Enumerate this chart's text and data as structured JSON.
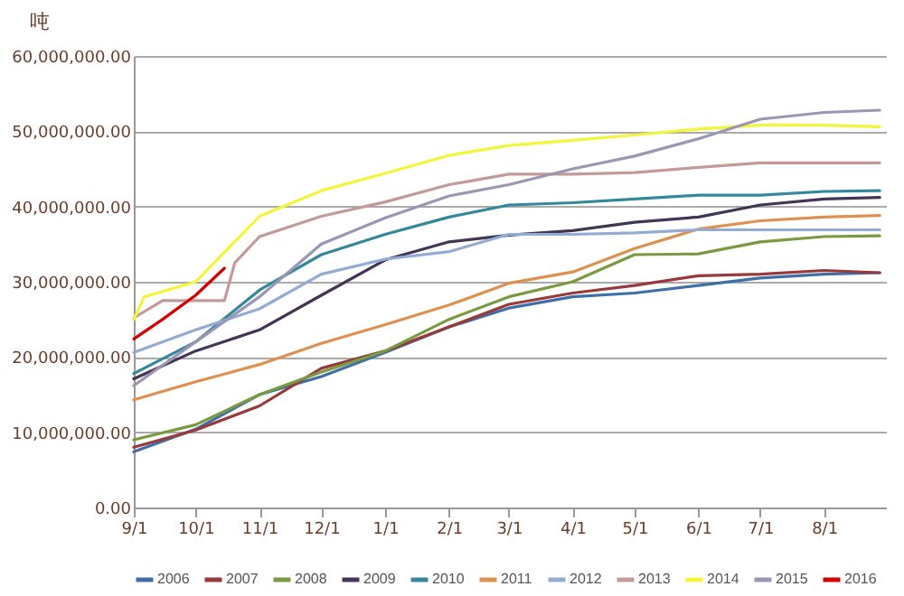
{
  "chart_data": {
    "type": "line",
    "ylabel": "吨",
    "xlim": [
      "2015-09-01",
      "2016-08-31"
    ],
    "xticks": [
      {
        "value": "2015-09-01",
        "label": "9/1"
      },
      {
        "value": "2015-10-01",
        "label": "10/1"
      },
      {
        "value": "2015-11-01",
        "label": "11/1"
      },
      {
        "value": "2015-12-01",
        "label": "12/1"
      },
      {
        "value": "2016-01-01",
        "label": "1/1"
      },
      {
        "value": "2016-02-01",
        "label": "2/1"
      },
      {
        "value": "2016-03-01",
        "label": "3/1"
      },
      {
        "value": "2016-04-01",
        "label": "4/1"
      },
      {
        "value": "2016-05-01",
        "label": "5/1"
      },
      {
        "value": "2016-06-01",
        "label": "6/1"
      },
      {
        "value": "2016-07-01",
        "label": "7/1"
      },
      {
        "value": "2016-08-01",
        "label": "8/1"
      }
    ],
    "ylim": [
      0,
      60000000
    ],
    "yticks": [
      {
        "value": 0,
        "label": "0.00"
      },
      {
        "value": 10000000,
        "label": "10,000,000.00"
      },
      {
        "value": 20000000,
        "label": "20,000,000.00"
      },
      {
        "value": 30000000,
        "label": "30,000,000.00"
      },
      {
        "value": 40000000,
        "label": "40,000,000.00"
      },
      {
        "value": 50000000,
        "label": "50,000,000.00"
      },
      {
        "value": 60000000,
        "label": "60,000,000.00"
      }
    ],
    "grid": "y",
    "legend": "bottom",
    "marker": "none",
    "line_style": "solid",
    "series": [
      {
        "name": "2006",
        "color": "#3f6fa8",
        "x": [
          "2015-09-01",
          "2015-10-01",
          "2015-11-01",
          "2015-12-01",
          "2016-01-01",
          "2016-02-01",
          "2016-03-01",
          "2016-04-01",
          "2016-05-01",
          "2016-06-01",
          "2016-07-01",
          "2016-08-01",
          "2016-08-28"
        ],
        "values": [
          7400000,
          10400000,
          15000000,
          17400000,
          20600000,
          24000000,
          26500000,
          28000000,
          28500000,
          29500000,
          30500000,
          31000000,
          31200000
        ]
      },
      {
        "name": "2007",
        "color": "#983a3a",
        "x": [
          "2015-09-01",
          "2015-10-01",
          "2015-11-01",
          "2015-12-01",
          "2016-01-01",
          "2016-02-01",
          "2016-03-01",
          "2016-04-01",
          "2016-05-01",
          "2016-06-01",
          "2016-07-01",
          "2016-08-01",
          "2016-08-28"
        ],
        "values": [
          8000000,
          10300000,
          13500000,
          18500000,
          20800000,
          24000000,
          27000000,
          28500000,
          29500000,
          30800000,
          31000000,
          31500000,
          31200000
        ]
      },
      {
        "name": "2008",
        "color": "#7a9a40",
        "x": [
          "2015-09-01",
          "2015-10-01",
          "2015-11-01",
          "2015-12-01",
          "2016-01-01",
          "2016-02-01",
          "2016-03-01",
          "2016-04-01",
          "2016-05-01",
          "2016-06-01",
          "2016-07-01",
          "2016-08-01",
          "2016-08-28"
        ],
        "values": [
          9000000,
          11000000,
          15000000,
          18000000,
          20800000,
          25000000,
          28000000,
          30000000,
          33600000,
          33700000,
          35300000,
          36000000,
          36100000
        ]
      },
      {
        "name": "2009",
        "color": "#443456",
        "x": [
          "2015-09-01",
          "2015-10-01",
          "2015-11-01",
          "2015-12-01",
          "2016-01-01",
          "2016-02-01",
          "2016-03-01",
          "2016-04-01",
          "2016-05-01",
          "2016-06-01",
          "2016-07-01",
          "2016-08-01",
          "2016-08-28"
        ],
        "values": [
          17100000,
          20800000,
          23600000,
          28200000,
          32900000,
          35300000,
          36200000,
          36800000,
          37900000,
          38600000,
          40200000,
          41000000,
          41200000
        ]
      },
      {
        "name": "2010",
        "color": "#34889e",
        "x": [
          "2015-09-01",
          "2015-10-01",
          "2015-11-01",
          "2015-12-01",
          "2016-01-01",
          "2016-02-01",
          "2016-03-01",
          "2016-04-01",
          "2016-05-01",
          "2016-06-01",
          "2016-07-01",
          "2016-08-01",
          "2016-08-28"
        ],
        "values": [
          17800000,
          22000000,
          28900000,
          33600000,
          36300000,
          38600000,
          40200000,
          40500000,
          41000000,
          41500000,
          41500000,
          42000000,
          42100000
        ]
      },
      {
        "name": "2011",
        "color": "#de9050",
        "x": [
          "2015-09-01",
          "2015-10-01",
          "2015-11-01",
          "2015-12-01",
          "2016-01-01",
          "2016-02-01",
          "2016-03-01",
          "2016-04-01",
          "2016-05-01",
          "2016-06-01",
          "2016-07-01",
          "2016-08-01",
          "2016-08-28"
        ],
        "values": [
          14300000,
          16700000,
          19000000,
          21800000,
          24300000,
          26900000,
          29800000,
          31300000,
          34400000,
          37000000,
          38100000,
          38600000,
          38800000
        ]
      },
      {
        "name": "2012",
        "color": "#93acd4",
        "x": [
          "2015-09-01",
          "2015-10-01",
          "2015-11-01",
          "2015-12-01",
          "2016-01-01",
          "2016-02-01",
          "2016-03-01",
          "2016-04-01",
          "2016-05-01",
          "2016-06-01",
          "2016-07-01",
          "2016-08-01",
          "2016-08-28"
        ],
        "values": [
          20600000,
          23600000,
          26400000,
          31000000,
          33000000,
          34000000,
          36300000,
          36300000,
          36500000,
          36900000,
          36900000,
          36900000,
          36900000
        ]
      },
      {
        "name": "2013",
        "color": "#c49a98",
        "x": [
          "2015-09-01",
          "2015-09-15",
          "2015-10-15",
          "2015-10-20",
          "2015-11-01",
          "2015-12-01",
          "2016-01-01",
          "2016-02-01",
          "2016-03-01",
          "2016-04-01",
          "2016-05-01",
          "2016-06-01",
          "2016-07-01",
          "2016-08-01",
          "2016-08-28"
        ],
        "values": [
          25200000,
          27500000,
          27500000,
          32500000,
          36000000,
          38700000,
          40600000,
          42900000,
          44300000,
          44300000,
          44500000,
          45200000,
          45800000,
          45800000,
          45800000
        ]
      },
      {
        "name": "2014",
        "color": "#f4f43a",
        "x": [
          "2015-09-01",
          "2015-09-06",
          "2015-10-01",
          "2015-11-01",
          "2015-12-01",
          "2016-01-01",
          "2016-02-01",
          "2016-03-01",
          "2016-04-01",
          "2016-05-01",
          "2016-06-01",
          "2016-07-01",
          "2016-08-01",
          "2016-08-28"
        ],
        "values": [
          25000000,
          28000000,
          30000000,
          38700000,
          42100000,
          44400000,
          46800000,
          48100000,
          48800000,
          49500000,
          50300000,
          50800000,
          50800000,
          50600000
        ]
      },
      {
        "name": "2015",
        "color": "#9a96b4",
        "x": [
          "2015-09-01",
          "2015-10-01",
          "2015-11-01",
          "2015-12-01",
          "2016-01-01",
          "2016-02-01",
          "2016-03-01",
          "2016-04-01",
          "2016-05-01",
          "2016-06-01",
          "2016-07-01",
          "2016-08-01",
          "2016-08-28"
        ],
        "values": [
          16200000,
          22000000,
          28000000,
          35000000,
          38500000,
          41400000,
          42900000,
          45000000,
          46700000,
          49000000,
          51600000,
          52500000,
          52800000
        ]
      },
      {
        "name": "2016",
        "color": "#d40000",
        "x": [
          "2015-09-01",
          "2015-09-15",
          "2015-10-01",
          "2015-10-15"
        ],
        "values": [
          22400000,
          25000000,
          28200000,
          31800000
        ]
      }
    ]
  }
}
